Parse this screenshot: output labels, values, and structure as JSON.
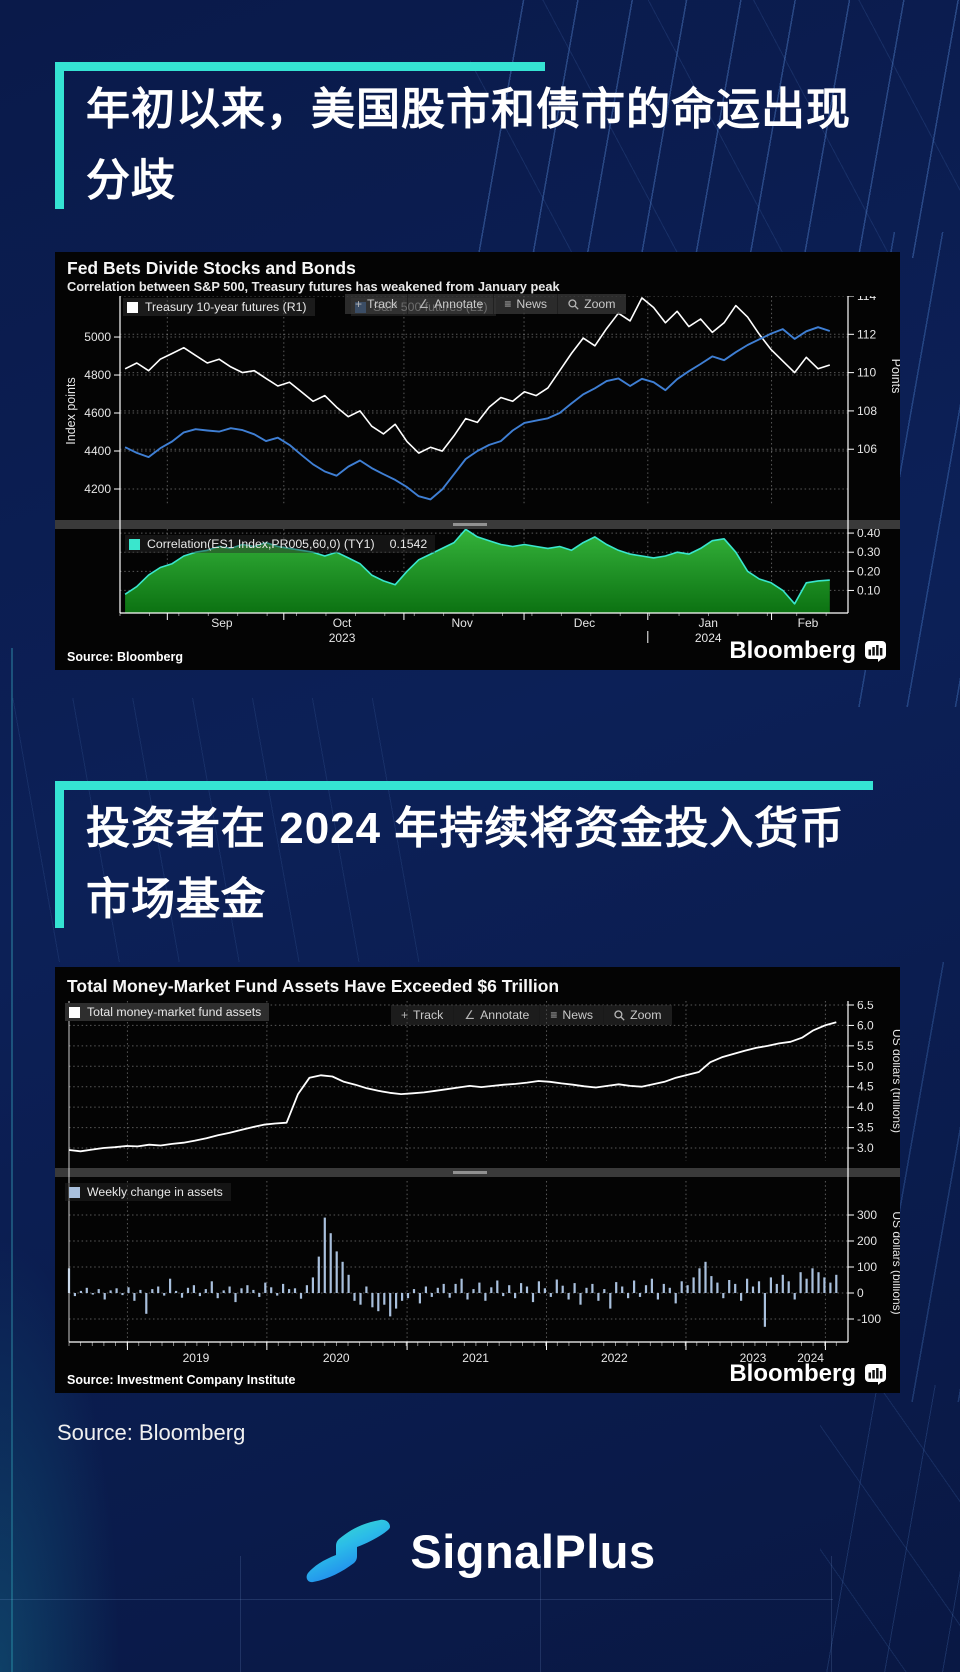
{
  "page": {
    "background": "#0b1c50",
    "accent": "#35e3d3",
    "panel_background": "#040404"
  },
  "headings": [
    {
      "line1": "年初以来，美国股市和债市的命运出现",
      "line2": "分歧"
    },
    {
      "line1": "投资者在 2024 年持续将资金投入货币",
      "line2": "市场基金"
    }
  ],
  "icons": {
    "track": "+",
    "annotate": "∠",
    "news": "≡",
    "zoom": "magnifier"
  },
  "source_note": "Source: Bloomberg",
  "brand": {
    "name": "SignalPlus"
  },
  "chart_data": [
    {
      "type": "line+area",
      "title": "Fed Bets Divide Stocks and Bonds",
      "subtitle": "Correlation between S&P 500, Treasury futures has weakened from January peak",
      "toolbar": [
        "Track",
        "Annotate",
        "News",
        "Zoom"
      ],
      "source": "Source: Bloomberg",
      "brand": "Bloomberg",
      "axes": {
        "left": {
          "title": "Index points",
          "ticks": [
            "5000",
            "4800",
            "4600",
            "4400",
            "4200"
          ]
        },
        "right": {
          "title": "Points",
          "ticks": [
            "114",
            "112",
            "110",
            "108",
            "106"
          ]
        },
        "lower_right": {
          "ticks": [
            "0.40",
            "0.30",
            "0.20",
            "0.10"
          ]
        },
        "x": {
          "months": [
            "Sep",
            "Oct",
            "Nov",
            "Dec",
            "Jan",
            "Feb"
          ],
          "years": [
            "2023",
            "2024"
          ]
        }
      },
      "series": [
        {
          "name": "Treasury 10-year futures  (R1)",
          "color": "#ffffff",
          "axis": "right",
          "values": [
            110.2,
            110.5,
            110.1,
            110.7,
            111.0,
            111.3,
            110.9,
            110.5,
            110.7,
            110.3,
            110.0,
            110.1,
            109.7,
            109.3,
            109.5,
            109.0,
            108.5,
            108.8,
            108.2,
            107.7,
            108.0,
            107.2,
            106.8,
            107.3,
            106.4,
            105.8,
            106.1,
            105.9,
            106.7,
            107.6,
            107.4,
            108.2,
            108.7,
            108.5,
            109.0,
            108.8,
            109.2,
            110.1,
            111.0,
            111.8,
            111.4,
            112.3,
            113.1,
            112.7,
            113.9,
            113.4,
            112.6,
            113.2,
            112.4,
            112.8,
            112.1,
            112.6,
            113.5,
            112.9,
            112.0,
            111.2,
            110.6,
            110.0,
            110.8,
            110.2,
            110.4
          ]
        },
        {
          "name": "S&P 500 futures (L1)",
          "color": "#3f7fd4",
          "axis": "left",
          "values": [
            4420,
            4390,
            4368,
            4415,
            4450,
            4498,
            4515,
            4508,
            4502,
            4520,
            4510,
            4488,
            4452,
            4470,
            4432,
            4380,
            4330,
            4292,
            4270,
            4318,
            4350,
            4310,
            4278,
            4248,
            4210,
            4162,
            4145,
            4198,
            4278,
            4358,
            4400,
            4432,
            4452,
            4508,
            4548,
            4560,
            4572,
            4600,
            4650,
            4698,
            4730,
            4768,
            4782,
            4742,
            4780,
            4762,
            4720,
            4778,
            4820,
            4858,
            4898,
            4878,
            4920,
            4958,
            4988,
            5018,
            5042,
            4990,
            5030,
            5052,
            5032
          ]
        }
      ],
      "correlation": {
        "name": "Correlation(ES1 Index,PR005,60,0) (TY1)",
        "last_value": "0.1542",
        "color": "#3ae6cd",
        "fill_top": "#35b33b",
        "fill_bottom": "#0c7212",
        "values": [
          0.08,
          0.12,
          0.18,
          0.22,
          0.24,
          0.28,
          0.3,
          0.31,
          0.33,
          0.32,
          0.34,
          0.33,
          0.35,
          0.33,
          0.32,
          0.31,
          0.3,
          0.28,
          0.3,
          0.27,
          0.24,
          0.18,
          0.15,
          0.13,
          0.2,
          0.26,
          0.29,
          0.32,
          0.35,
          0.42,
          0.38,
          0.36,
          0.34,
          0.33,
          0.34,
          0.33,
          0.32,
          0.33,
          0.31,
          0.35,
          0.38,
          0.34,
          0.31,
          0.29,
          0.28,
          0.27,
          0.28,
          0.3,
          0.29,
          0.32,
          0.36,
          0.37,
          0.3,
          0.2,
          0.16,
          0.14,
          0.1,
          0.03,
          0.14,
          0.15,
          0.1542
        ]
      }
    },
    {
      "type": "line+bar",
      "title": "Total Money-Market Fund Assets Have Exceeded $6 Trillion",
      "toolbar": [
        "Track",
        "Annotate",
        "News",
        "Zoom"
      ],
      "source": "Source: Investment Company Institute",
      "brand": "Bloomberg",
      "axes": {
        "upper_right": {
          "title": "US dollars (trillions)",
          "ticks": [
            "6.5",
            "6.0",
            "5.5",
            "5.0",
            "4.5",
            "4.0",
            "3.5",
            "3.0"
          ]
        },
        "lower_right": {
          "title": "US dollars (billions)",
          "ticks": [
            "300",
            "200",
            "100",
            "0",
            "-100"
          ]
        },
        "x": {
          "years": [
            "2019",
            "2020",
            "2021",
            "2022",
            "2023",
            "2024"
          ]
        }
      },
      "series": [
        {
          "name": "Total money-market fund assets",
          "color": "#ffffff",
          "values": [
            2.95,
            2.92,
            2.96,
            3.0,
            3.02,
            3.05,
            3.04,
            3.08,
            3.06,
            3.1,
            3.13,
            3.18,
            3.24,
            3.31,
            3.37,
            3.44,
            3.51,
            3.57,
            3.6,
            3.62,
            4.32,
            4.72,
            4.78,
            4.75,
            4.62,
            4.55,
            4.46,
            4.4,
            4.35,
            4.32,
            4.34,
            4.36,
            4.4,
            4.44,
            4.48,
            4.52,
            4.49,
            4.52,
            4.55,
            4.57,
            4.6,
            4.64,
            4.62,
            4.58,
            4.55,
            4.51,
            4.48,
            4.52,
            4.56,
            4.52,
            4.5,
            4.56,
            4.62,
            4.72,
            4.79,
            4.86,
            5.1,
            5.22,
            5.3,
            5.38,
            5.45,
            5.5,
            5.56,
            5.6,
            5.7,
            5.88,
            6.0,
            6.08
          ]
        }
      ],
      "weekly": {
        "name": "Weekly change in assets",
        "color": "#a9c0dd",
        "values": [
          95,
          -12,
          8,
          20,
          -6,
          15,
          -25,
          10,
          18,
          -8,
          22,
          -30,
          12,
          -80,
          15,
          25,
          -10,
          55,
          8,
          -18,
          20,
          30,
          -12,
          15,
          45,
          -20,
          10,
          25,
          -35,
          18,
          30,
          12,
          -15,
          40,
          22,
          -10,
          35,
          15,
          18,
          -22,
          30,
          60,
          140,
          290,
          230,
          160,
          120,
          70,
          -30,
          -45,
          25,
          -55,
          -70,
          -45,
          -90,
          -60,
          -30,
          -20,
          15,
          -40,
          25,
          -15,
          20,
          35,
          -18,
          35,
          55,
          -25,
          15,
          40,
          -30,
          22,
          48,
          -12,
          30,
          -20,
          38,
          25,
          -35,
          45,
          18,
          -15,
          52,
          28,
          -25,
          38,
          -45,
          20,
          35,
          -30,
          15,
          -60,
          42,
          25,
          -20,
          48,
          -15,
          30,
          55,
          -25,
          35,
          20,
          -40,
          45,
          30,
          60,
          95,
          120,
          65,
          40,
          -20,
          50,
          35,
          -30,
          55,
          25,
          45,
          -130,
          60,
          35,
          70,
          45,
          -25,
          80,
          55,
          95,
          80,
          60,
          40,
          70
        ]
      }
    }
  ]
}
